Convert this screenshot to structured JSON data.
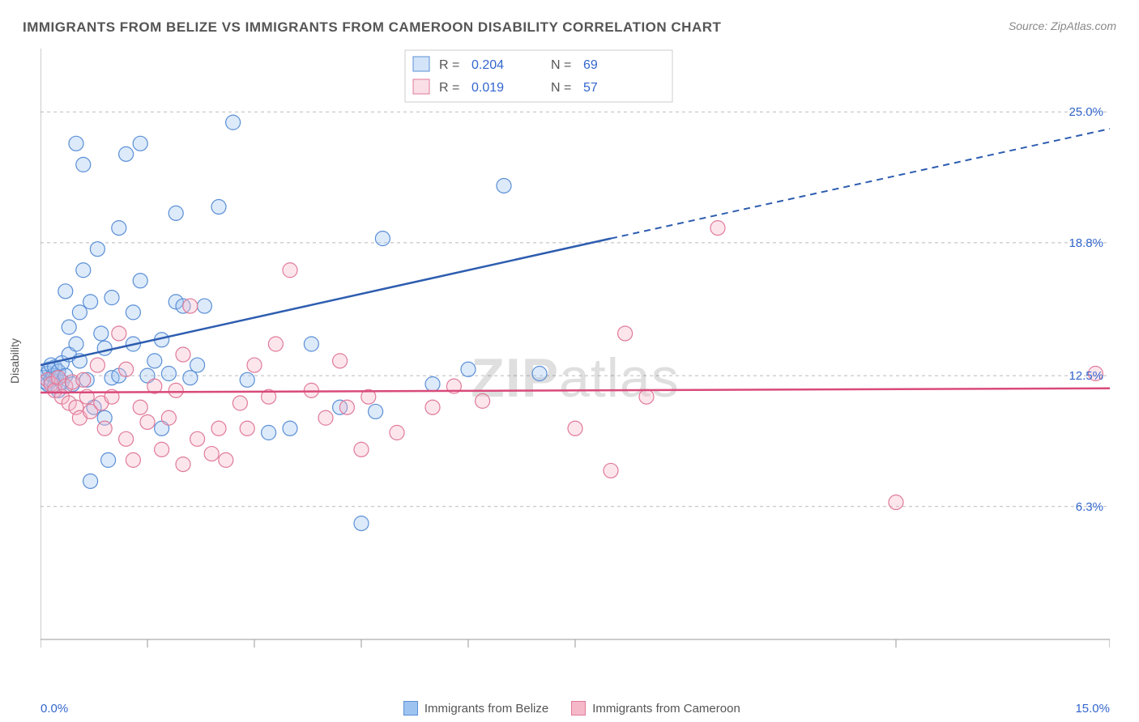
{
  "title": "IMMIGRANTS FROM BELIZE VS IMMIGRANTS FROM CAMEROON DISABILITY CORRELATION CHART",
  "source": "Source: ZipAtlas.com",
  "ylabel": "Disability",
  "watermark_light": "ZIP",
  "watermark_bold": "atlas",
  "chart": {
    "type": "scatter",
    "xlim": [
      0.0,
      15.0
    ],
    "ylim": [
      0.0,
      28.0
    ],
    "x_ticks_minor": [
      0.0,
      1.5,
      3.0,
      4.5,
      6.0,
      7.5,
      12.0,
      15.0
    ],
    "y_gridlines": [
      6.3,
      12.5,
      18.8,
      25.0
    ],
    "y_tick_labels": [
      "6.3%",
      "12.5%",
      "18.8%",
      "25.0%"
    ],
    "x_min_label": "0.0%",
    "x_max_label": "15.0%",
    "background_color": "#ffffff",
    "grid_color": "#bbbbbb",
    "axis_color": "#999999",
    "marker_radius": 9
  },
  "series": [
    {
      "name": "Immigrants from Belize",
      "color_fill": "#9dc3f0",
      "color_stroke": "#5a8fd6",
      "r_value": "0.204",
      "n_value": "69",
      "trend": {
        "x1": 0.0,
        "y1": 13.0,
        "x2": 8.0,
        "y2": 19.0,
        "x3": 15.0,
        "y3": 24.2,
        "color": "#2e5db0"
      },
      "points": [
        [
          0.05,
          12.4
        ],
        [
          0.08,
          12.2
        ],
        [
          0.1,
          12.6
        ],
        [
          0.1,
          12.1
        ],
        [
          0.12,
          12.8
        ],
        [
          0.15,
          12.3
        ],
        [
          0.15,
          13.0
        ],
        [
          0.18,
          12.5
        ],
        [
          0.2,
          12.0
        ],
        [
          0.2,
          12.9
        ],
        [
          0.22,
          12.4
        ],
        [
          0.25,
          12.7
        ],
        [
          0.25,
          11.8
        ],
        [
          0.3,
          12.2
        ],
        [
          0.3,
          13.1
        ],
        [
          0.35,
          12.5
        ],
        [
          0.35,
          16.5
        ],
        [
          0.4,
          13.5
        ],
        [
          0.4,
          14.8
        ],
        [
          0.45,
          12.1
        ],
        [
          0.5,
          14.0
        ],
        [
          0.5,
          23.5
        ],
        [
          0.55,
          15.5
        ],
        [
          0.55,
          13.2
        ],
        [
          0.6,
          17.5
        ],
        [
          0.6,
          22.5
        ],
        [
          0.65,
          12.3
        ],
        [
          0.7,
          16.0
        ],
        [
          0.7,
          7.5
        ],
        [
          0.75,
          11.0
        ],
        [
          0.8,
          18.5
        ],
        [
          0.85,
          14.5
        ],
        [
          0.9,
          13.8
        ],
        [
          0.9,
          10.5
        ],
        [
          0.95,
          8.5
        ],
        [
          1.0,
          12.4
        ],
        [
          1.0,
          16.2
        ],
        [
          1.1,
          19.5
        ],
        [
          1.1,
          12.5
        ],
        [
          1.2,
          23.0
        ],
        [
          1.3,
          15.5
        ],
        [
          1.3,
          14.0
        ],
        [
          1.4,
          23.5
        ],
        [
          1.4,
          17.0
        ],
        [
          1.5,
          12.5
        ],
        [
          1.6,
          13.2
        ],
        [
          1.7,
          14.2
        ],
        [
          1.7,
          10.0
        ],
        [
          1.8,
          12.6
        ],
        [
          1.9,
          20.2
        ],
        [
          1.9,
          16.0
        ],
        [
          2.0,
          15.8
        ],
        [
          2.1,
          12.4
        ],
        [
          2.2,
          13.0
        ],
        [
          2.3,
          15.8
        ],
        [
          2.5,
          20.5
        ],
        [
          2.7,
          24.5
        ],
        [
          2.9,
          12.3
        ],
        [
          3.2,
          9.8
        ],
        [
          3.5,
          10.0
        ],
        [
          3.8,
          14.0
        ],
        [
          4.2,
          11.0
        ],
        [
          4.5,
          5.5
        ],
        [
          4.7,
          10.8
        ],
        [
          4.8,
          19.0
        ],
        [
          5.5,
          12.1
        ],
        [
          6.0,
          12.8
        ],
        [
          6.5,
          21.5
        ],
        [
          7.0,
          12.6
        ]
      ]
    },
    {
      "name": "Immigrants from Cameroon",
      "color_fill": "#f5b8c8",
      "color_stroke": "#e07a9a",
      "r_value": "0.019",
      "n_value": "57",
      "trend": {
        "x1": 0.0,
        "y1": 11.7,
        "x2": 15.0,
        "y2": 11.9,
        "color": "#d94a7a"
      },
      "points": [
        [
          0.1,
          12.3
        ],
        [
          0.15,
          12.1
        ],
        [
          0.2,
          11.8
        ],
        [
          0.25,
          12.4
        ],
        [
          0.3,
          11.5
        ],
        [
          0.35,
          12.0
        ],
        [
          0.4,
          11.2
        ],
        [
          0.45,
          12.2
        ],
        [
          0.5,
          11.0
        ],
        [
          0.55,
          10.5
        ],
        [
          0.6,
          12.3
        ],
        [
          0.65,
          11.5
        ],
        [
          0.7,
          10.8
        ],
        [
          0.8,
          13.0
        ],
        [
          0.85,
          11.2
        ],
        [
          0.9,
          10.0
        ],
        [
          1.0,
          11.5
        ],
        [
          1.1,
          14.5
        ],
        [
          1.2,
          9.5
        ],
        [
          1.2,
          12.8
        ],
        [
          1.3,
          8.5
        ],
        [
          1.4,
          11.0
        ],
        [
          1.5,
          10.3
        ],
        [
          1.6,
          12.0
        ],
        [
          1.7,
          9.0
        ],
        [
          1.8,
          10.5
        ],
        [
          1.9,
          11.8
        ],
        [
          2.0,
          13.5
        ],
        [
          2.0,
          8.3
        ],
        [
          2.1,
          15.8
        ],
        [
          2.2,
          9.5
        ],
        [
          2.4,
          8.8
        ],
        [
          2.5,
          10.0
        ],
        [
          2.6,
          8.5
        ],
        [
          2.8,
          11.2
        ],
        [
          2.9,
          10.0
        ],
        [
          3.0,
          13.0
        ],
        [
          3.2,
          11.5
        ],
        [
          3.3,
          14.0
        ],
        [
          3.5,
          17.5
        ],
        [
          3.8,
          11.8
        ],
        [
          4.0,
          10.5
        ],
        [
          4.2,
          13.2
        ],
        [
          4.3,
          11.0
        ],
        [
          4.5,
          9.0
        ],
        [
          4.6,
          11.5
        ],
        [
          5.0,
          9.8
        ],
        [
          5.5,
          11.0
        ],
        [
          5.8,
          12.0
        ],
        [
          6.2,
          11.3
        ],
        [
          7.5,
          10.0
        ],
        [
          8.0,
          8.0
        ],
        [
          8.5,
          11.5
        ],
        [
          9.5,
          19.5
        ],
        [
          12.0,
          6.5
        ],
        [
          14.8,
          12.6
        ],
        [
          8.2,
          14.5
        ]
      ]
    }
  ],
  "legend_top": {
    "r_label": "R =",
    "n_label": "N ="
  },
  "footer_legend": [
    {
      "label": "Immigrants from Belize",
      "fill": "#9dc3f0",
      "stroke": "#5a8fd6"
    },
    {
      "label": "Immigrants from Cameroon",
      "fill": "#f5b8c8",
      "stroke": "#e07a9a"
    }
  ]
}
